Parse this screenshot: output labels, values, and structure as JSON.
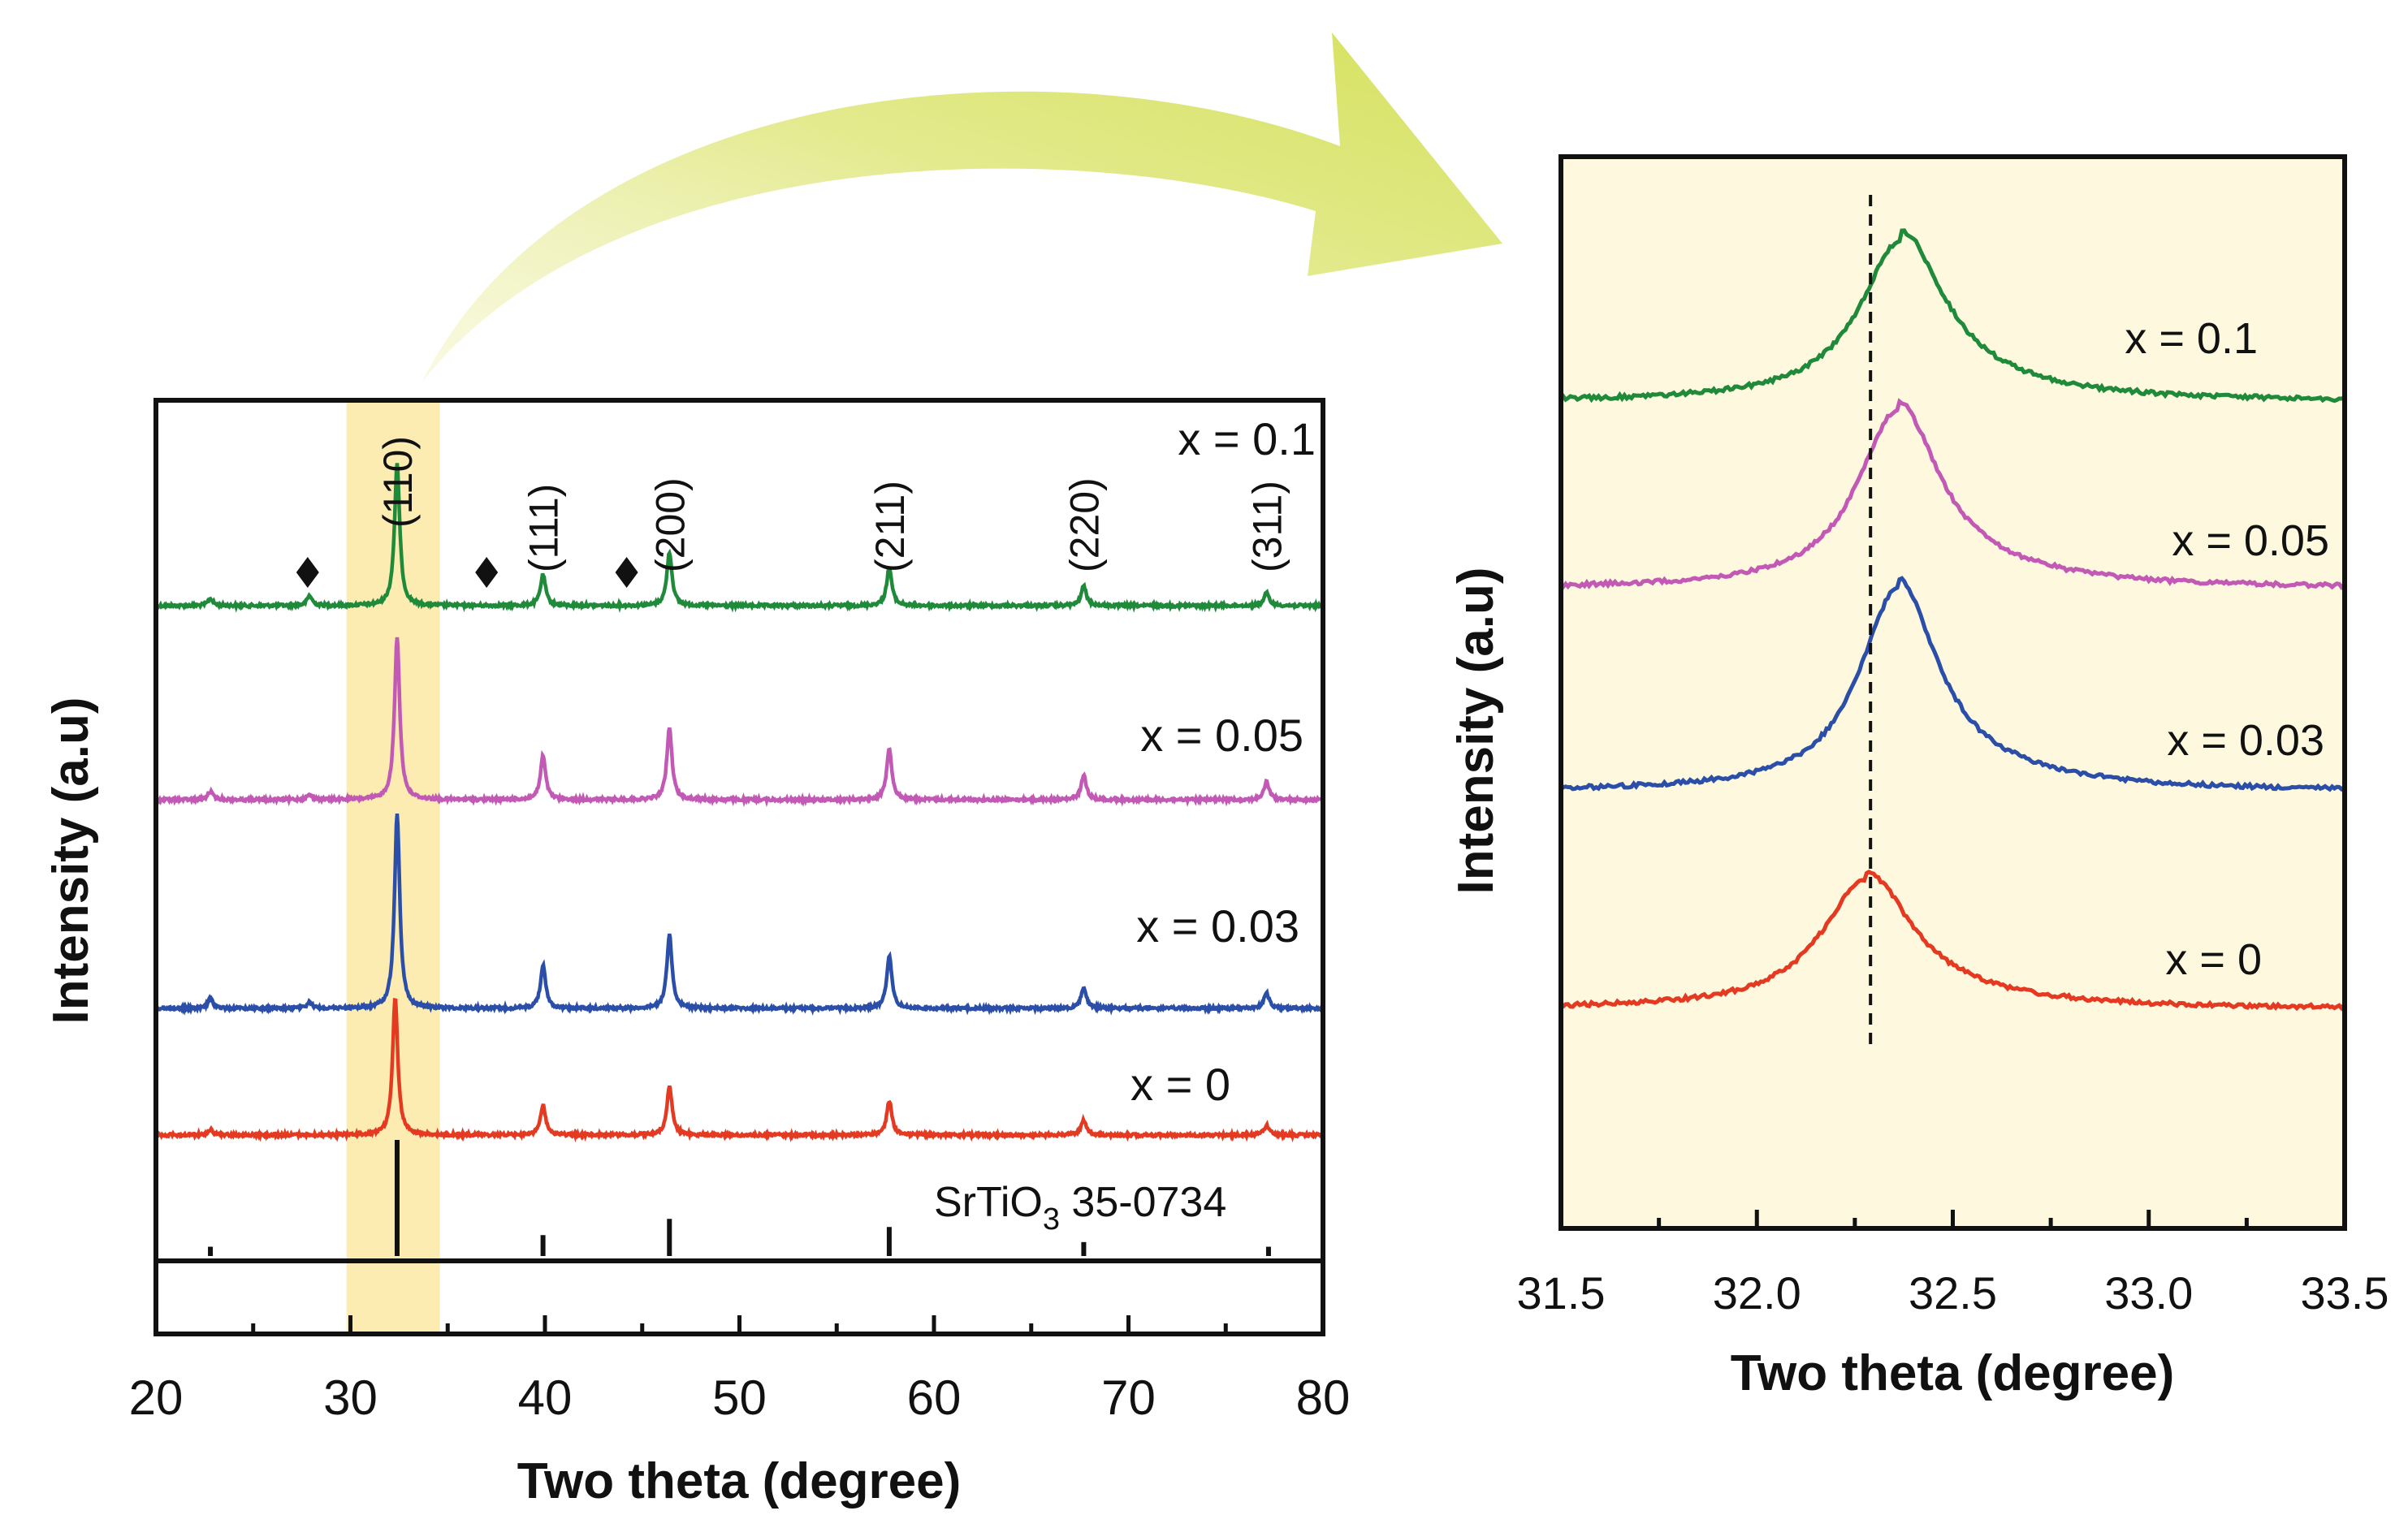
{
  "chart_data": [
    {
      "type": "line",
      "title": "",
      "xlabel": "Two theta (degree)",
      "ylabel": "Intensity (a.u)",
      "xlim": [
        20,
        80
      ],
      "xticks": [
        20,
        30,
        40,
        50,
        60,
        70,
        80
      ],
      "highlight_band": {
        "x": [
          29.8,
          34.6
        ],
        "color": "#fbe9a3"
      },
      "y_ticks_shown": false,
      "grid": false,
      "series": [
        {
          "name": "x = 0.1",
          "color": "#1f8a3a",
          "peaks": [
            [
              22.8,
              0.05
            ],
            [
              27.9,
              0.07
            ],
            [
              32.4,
              1.0
            ],
            [
              39.9,
              0.22
            ],
            [
              46.4,
              0.38
            ],
            [
              57.7,
              0.27
            ],
            [
              67.7,
              0.14
            ],
            [
              77.1,
              0.09
            ]
          ]
        },
        {
          "name": "x = 0.05",
          "color": "#c25ab5",
          "peaks": [
            [
              22.8,
              0.05
            ],
            [
              27.9,
              0.03
            ],
            [
              32.4,
              1.0
            ],
            [
              39.9,
              0.27
            ],
            [
              46.4,
              0.44
            ],
            [
              57.7,
              0.32
            ],
            [
              67.7,
              0.15
            ],
            [
              77.1,
              0.11
            ]
          ]
        },
        {
          "name": "x = 0.03",
          "color": "#2b4fa8",
          "peaks": [
            [
              22.8,
              0.05
            ],
            [
              27.9,
              0.03
            ],
            [
              32.4,
              1.0
            ],
            [
              39.9,
              0.22
            ],
            [
              46.4,
              0.38
            ],
            [
              57.7,
              0.27
            ],
            [
              67.7,
              0.11
            ],
            [
              77.1,
              0.08
            ]
          ]
        },
        {
          "name": "x = 0",
          "color": "#e53a22",
          "peaks": [
            [
              22.8,
              0.04
            ],
            [
              32.3,
              1.0
            ],
            [
              39.9,
              0.22
            ],
            [
              46.4,
              0.36
            ],
            [
              57.7,
              0.25
            ],
            [
              67.7,
              0.11
            ],
            [
              77.1,
              0.07
            ]
          ]
        }
      ],
      "reference": {
        "label_main": "SrTiO",
        "label_sub": "3",
        "label_rest": " 35-0734",
        "lines": [
          [
            22.8,
            0.08
          ],
          [
            32.4,
            1.0
          ],
          [
            39.9,
            0.18
          ],
          [
            46.4,
            0.32
          ],
          [
            57.7,
            0.25
          ],
          [
            67.7,
            0.12
          ],
          [
            77.2,
            0.08
          ]
        ]
      },
      "annotations": {
        "hkl": [
          {
            "label": "(110)",
            "x": 32.4
          },
          {
            "label": "(111)",
            "x": 39.9
          },
          {
            "label": "(200)",
            "x": 46.4
          },
          {
            "label": "(211)",
            "x": 57.7
          },
          {
            "label": "(220)",
            "x": 67.7
          },
          {
            "label": "(311)",
            "x": 77.1
          }
        ],
        "diamond_markers_x": [
          27.8,
          37.0,
          44.2
        ]
      }
    },
    {
      "type": "line",
      "title": "",
      "xlabel": "Two theta (degree)",
      "ylabel": "Intensity (a.u)",
      "xlim": [
        31.5,
        33.5
      ],
      "xticks": [
        31.5,
        32.0,
        32.5,
        33.0,
        33.5
      ],
      "xtick_labels": [
        "31.5",
        "32.0",
        "32.5",
        "33.0",
        "33.5"
      ],
      "background_color": "#fdf8de",
      "reference_line_x": 32.29,
      "y_ticks_shown": false,
      "grid": false,
      "series": [
        {
          "name": "x = 0.1",
          "color": "#1f8a3a",
          "peak_center": 32.37,
          "fwhm": 0.26
        },
        {
          "name": "x = 0.05",
          "color": "#c25ab5",
          "peak_center": 32.36,
          "fwhm": 0.25
        },
        {
          "name": "x = 0.03",
          "color": "#2b4fa8",
          "peak_center": 32.36,
          "fwhm": 0.24
        },
        {
          "name": "x = 0",
          "color": "#e53a22",
          "peak_center": 32.28,
          "fwhm": 0.28
        }
      ]
    }
  ]
}
